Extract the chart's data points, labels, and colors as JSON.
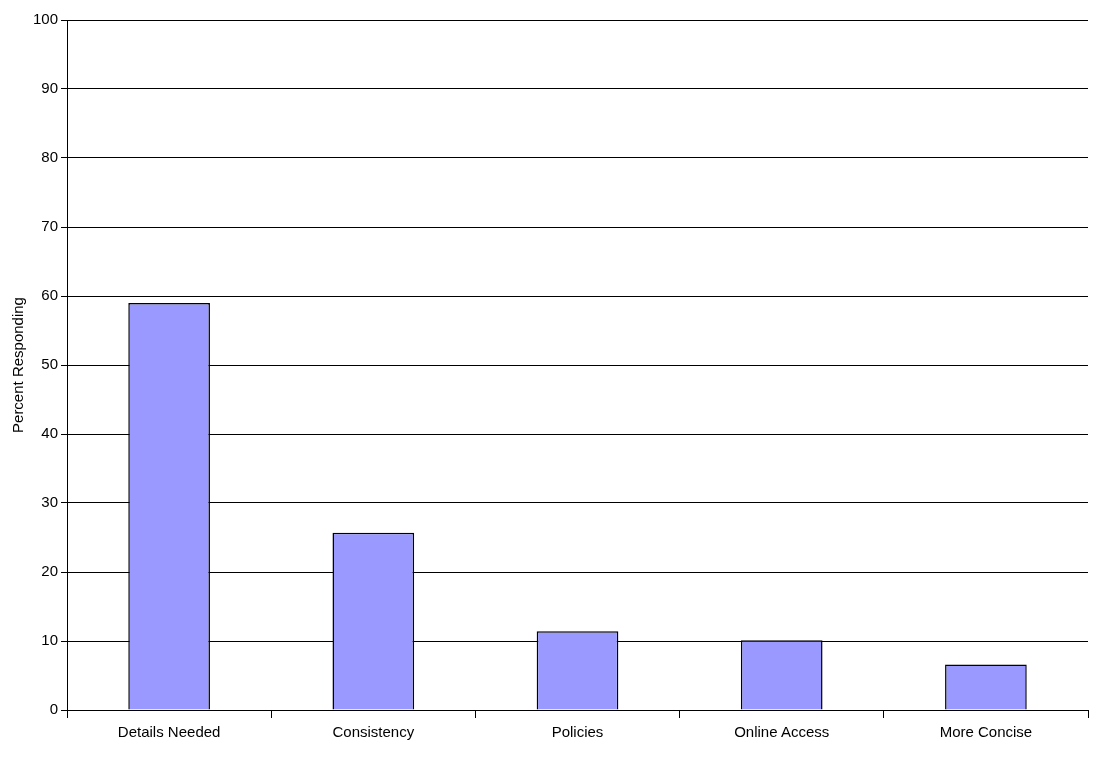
{
  "chart_data": {
    "type": "bar",
    "ylabel": "Percent Responding",
    "categories": [
      "Details Needed",
      "Consistency",
      "Policies",
      "Online Access",
      "More Concise"
    ],
    "values": [
      59,
      25.7,
      11.4,
      10.1,
      6.6
    ],
    "color": "#9999ff",
    "ylim": [
      0,
      100
    ],
    "yticks": [
      0,
      10,
      20,
      30,
      40,
      50,
      60,
      70,
      80,
      90,
      100
    ],
    "grid": "y",
    "legend": false
  }
}
